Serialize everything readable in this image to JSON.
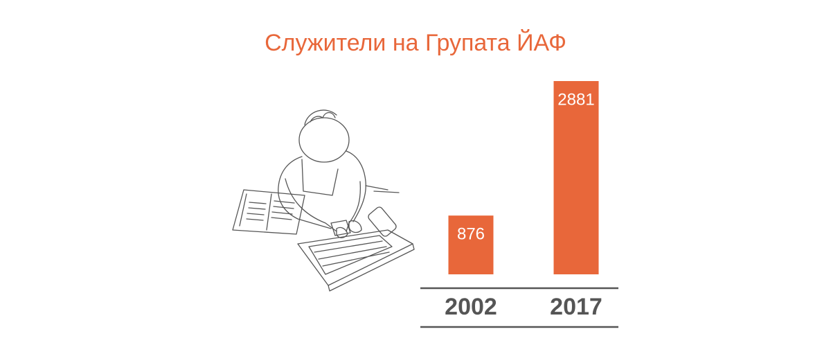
{
  "chart_data": {
    "type": "bar",
    "title": "Служители на Групата ЙАФ",
    "categories": [
      "2002",
      "2017"
    ],
    "values": [
      876,
      2881
    ],
    "color": "#e8673a"
  }
}
